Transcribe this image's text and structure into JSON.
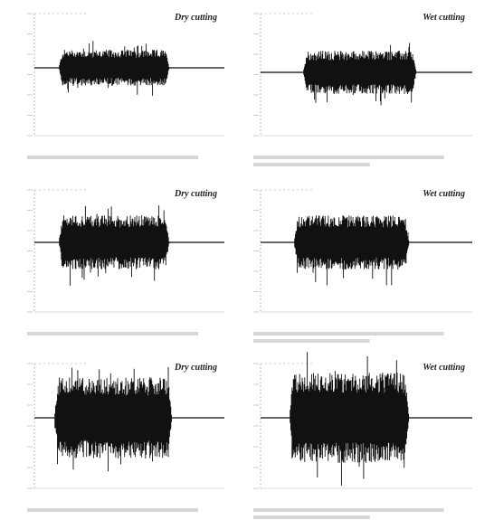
{
  "panels": [
    {
      "title": "Dry cutting"
    },
    {
      "title": "Wet cutting"
    },
    {
      "title": "Dry cutting"
    },
    {
      "title": "Wet cutting"
    },
    {
      "title": "Dry cutting"
    },
    {
      "title": "Wet cutting"
    }
  ]
}
